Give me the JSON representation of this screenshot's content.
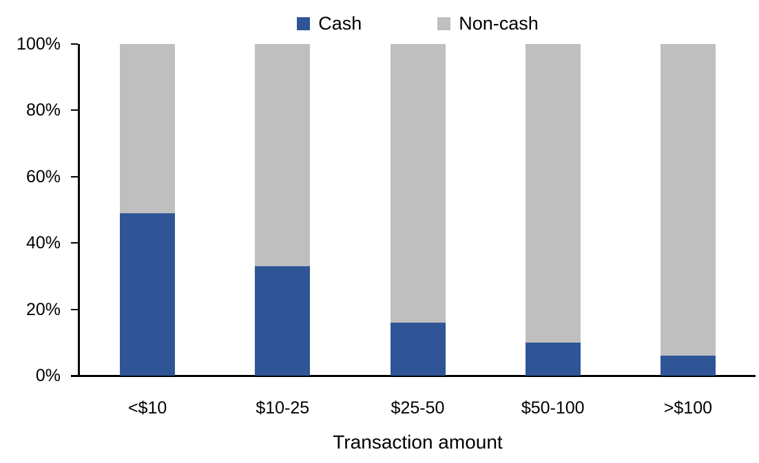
{
  "chart_data": {
    "type": "bar",
    "stacked": true,
    "title": "",
    "xlabel": "Transaction amount",
    "ylabel": "",
    "categories": [
      "<$10",
      "$10-25",
      "$25-50",
      "$50-100",
      ">$100"
    ],
    "series": [
      {
        "name": "Cash",
        "color": "#2F5597",
        "values": [
          49,
          33,
          16,
          10,
          6
        ]
      },
      {
        "name": "Non-cash",
        "color": "#BFBFBF",
        "values": [
          51,
          67,
          84,
          90,
          94
        ]
      }
    ],
    "ylim": [
      0,
      100
    ],
    "y_ticks": [
      0,
      20,
      40,
      60,
      80,
      100
    ],
    "y_tick_labels": [
      "0%",
      "20%",
      "40%",
      "60%",
      "80%",
      "100%"
    ],
    "grid": false,
    "legend_position": "top"
  }
}
